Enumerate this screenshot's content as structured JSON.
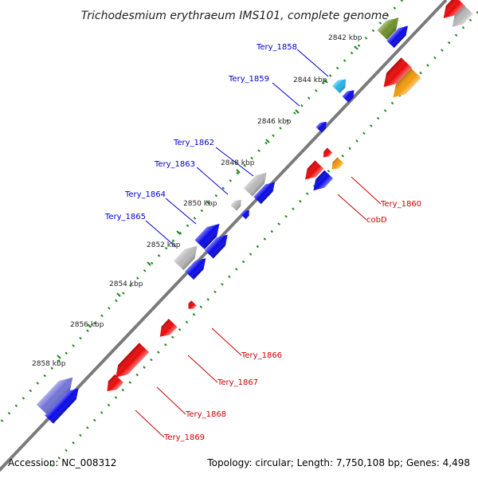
{
  "title": "Trichodesmium erythraeum IMS101, complete genome",
  "footer": {
    "accession": "Accession: NC_008312",
    "summary": "Topology: circular; Length: 7,750,108 bp; Genes: 4,498"
  },
  "ruler": {
    "tick_labels": [
      "2842 kbp",
      "2844 kbp",
      "2846 kbp",
      "2848 kbp",
      "2850 kbp",
      "2852 kbp",
      "2854 kbp",
      "2856 kbp",
      "2858 kbp"
    ]
  },
  "gene_labels": {
    "forward": [
      "Tery_1858",
      "Tery_1859",
      "Tery_1862",
      "Tery_1863",
      "Tery_1864",
      "Tery_1865"
    ],
    "reverse": [
      "Tery_1860",
      "cobD",
      "Tery_1866",
      "Tery_1867",
      "Tery_1868",
      "Tery_1869"
    ]
  },
  "colors": {
    "backbone": "#7a7a7a",
    "tick_dots": "#1d8a1d",
    "forward_label": "#0000cc",
    "reverse_label": "#cc0000",
    "cds_blue": "#0a0ae8",
    "cds_red": "#e80a0a",
    "cds_gray": "#b8b8b8",
    "cds_olive": "#6f8f2a",
    "cds_orange": "#f29a0c",
    "cds_cyan": "#24b4ec",
    "cds_slate": "#7373d6"
  },
  "icons": [
    "forward-strand-arrow",
    "reverse-strand-arrow"
  ]
}
